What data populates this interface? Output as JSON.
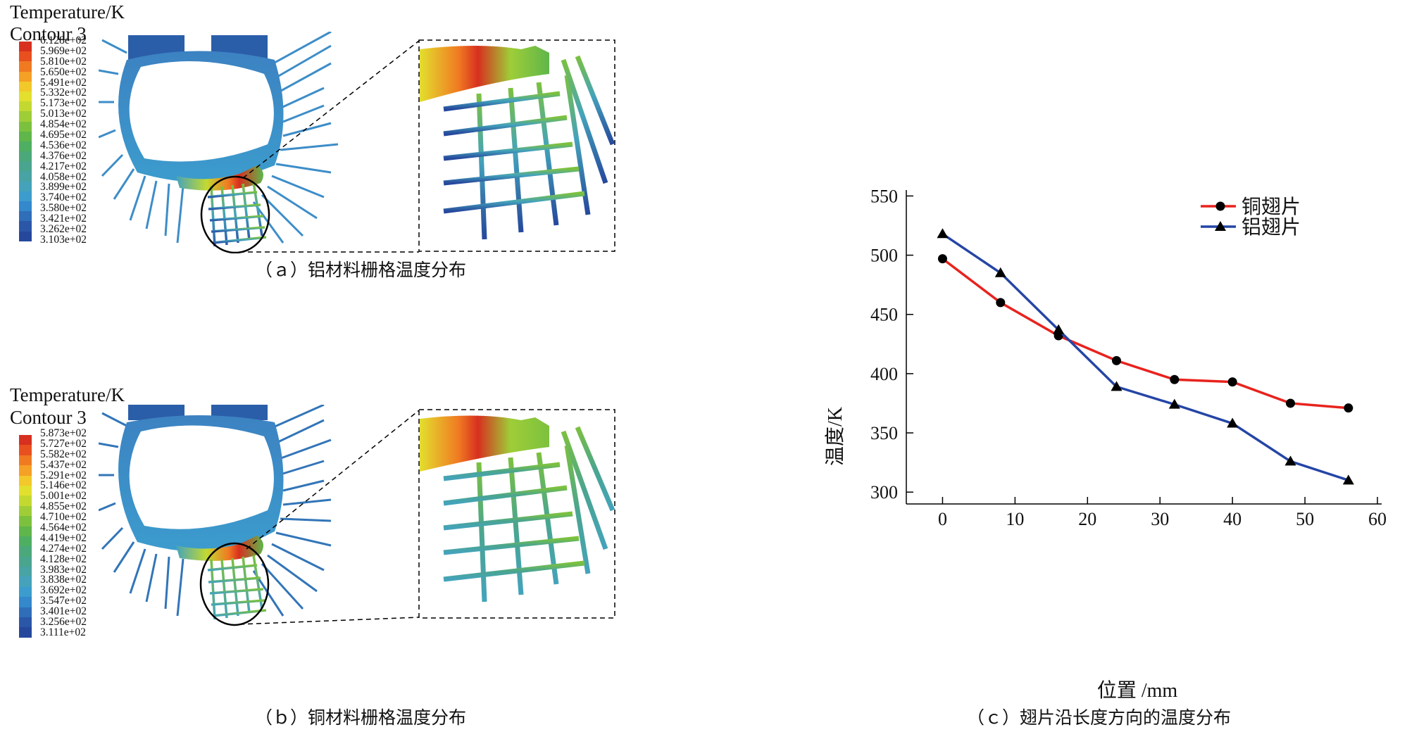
{
  "panel_a": {
    "legend_title": "Temperature/K",
    "legend_subtitle": "Contour 3",
    "legend_values": [
      "6.128e+02",
      "5.969e+02",
      "5.810e+02",
      "5.650e+02",
      "5.491e+02",
      "5.332e+02",
      "5.173e+02",
      "5.013e+02",
      "4.854e+02",
      "4.695e+02",
      "4.536e+02",
      "4.376e+02",
      "4.217e+02",
      "4.058e+02",
      "3.899e+02",
      "3.740e+02",
      "3.580e+02",
      "3.421e+02",
      "3.262e+02",
      "3.103e+02"
    ],
    "caption": "（ａ）铝材料栅格温度分布"
  },
  "panel_b": {
    "legend_title": "Temperature/K",
    "legend_subtitle": "Contour 3",
    "legend_values": [
      "5.873e+02",
      "5.727e+02",
      "5.582e+02",
      "5.437e+02",
      "5.291e+02",
      "5.146e+02",
      "5.001e+02",
      "4.855e+02",
      "4.710e+02",
      "4.564e+02",
      "4.419e+02",
      "4.274e+02",
      "4.128e+02",
      "3.983e+02",
      "3.838e+02",
      "3.692e+02",
      "3.547e+02",
      "3.401e+02",
      "3.256e+02",
      "3.111e+02"
    ],
    "caption": "（ｂ）铜材料栅格温度分布"
  },
  "colormap": [
    "#d7301f",
    "#e8501f",
    "#f07a22",
    "#f5a026",
    "#f2c82a",
    "#e3df2e",
    "#c3d932",
    "#9fcd38",
    "#7cc13e",
    "#5fb64a",
    "#4eaf62",
    "#4aa87a",
    "#4aa58f",
    "#48a3a4",
    "#44a3bb",
    "#3c9ccd",
    "#3488cc",
    "#2f6eb9",
    "#2b57a8",
    "#26489c"
  ],
  "chart_data": {
    "type": "line",
    "title": "",
    "caption": "（ｃ）翅片沿长度方向的温度分布",
    "xlabel": "位置 /mm",
    "ylabel": "温度/K",
    "xlim": [
      -5,
      60
    ],
    "ylim": [
      290,
      555
    ],
    "xticks": [
      0,
      10,
      20,
      30,
      40,
      50,
      60
    ],
    "yticks": [
      300,
      350,
      400,
      450,
      500,
      550
    ],
    "legend_position": "top-right",
    "series": [
      {
        "name": "铜翅片",
        "color": "#e8231e",
        "marker": "circle",
        "x": [
          0,
          8,
          16,
          24,
          32,
          40,
          48,
          56
        ],
        "y": [
          497,
          460,
          432,
          411,
          395,
          393,
          375,
          371
        ]
      },
      {
        "name": "铝翅片",
        "color": "#2545a5",
        "marker": "triangle",
        "x": [
          0,
          8,
          16,
          24,
          32,
          40,
          48,
          56
        ],
        "y": [
          518,
          485,
          437,
          389,
          374,
          358,
          326,
          310
        ]
      }
    ]
  }
}
